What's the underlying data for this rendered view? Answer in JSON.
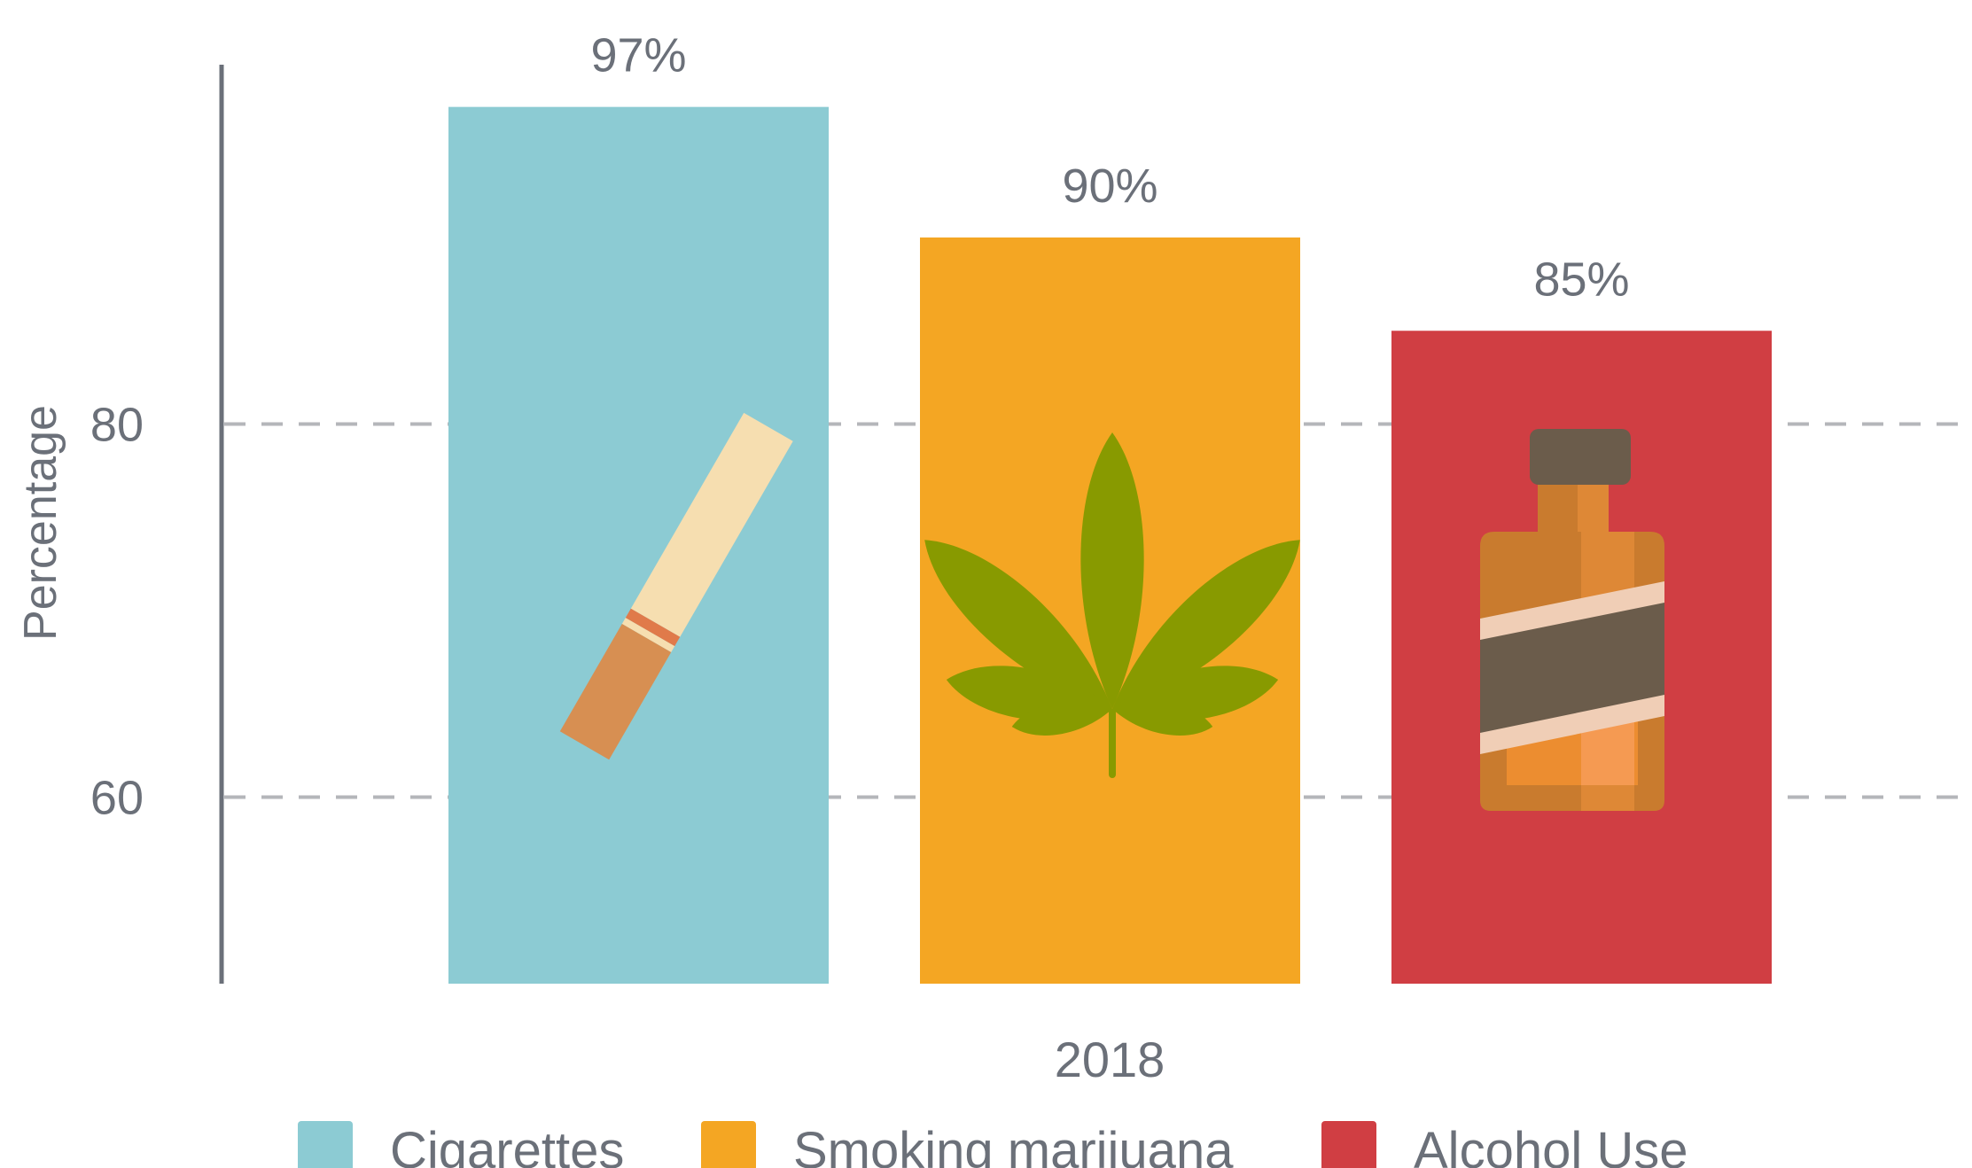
{
  "chart_data": {
    "type": "bar",
    "title": "",
    "xlabel": "",
    "ylabel": "Percentage",
    "ylim": [
      50,
      100
    ],
    "yticks": [
      60,
      80
    ],
    "grid": true,
    "legend_position": "bottom",
    "categories": [
      "2018"
    ],
    "series": [
      {
        "name": "Cigarettes",
        "values": [
          97
        ],
        "label": "97%",
        "color": "#8ccbd3",
        "icon": "cigarette-icon"
      },
      {
        "name": "Smoking marijuana",
        "values": [
          90
        ],
        "label": "90%",
        "color": "#f4a623",
        "icon": "cannabis-leaf-icon"
      },
      {
        "name": "Alcohol Use",
        "values": [
          85
        ],
        "label": "85%",
        "color": "#d03e43",
        "icon": "liquor-bottle-icon"
      }
    ]
  }
}
